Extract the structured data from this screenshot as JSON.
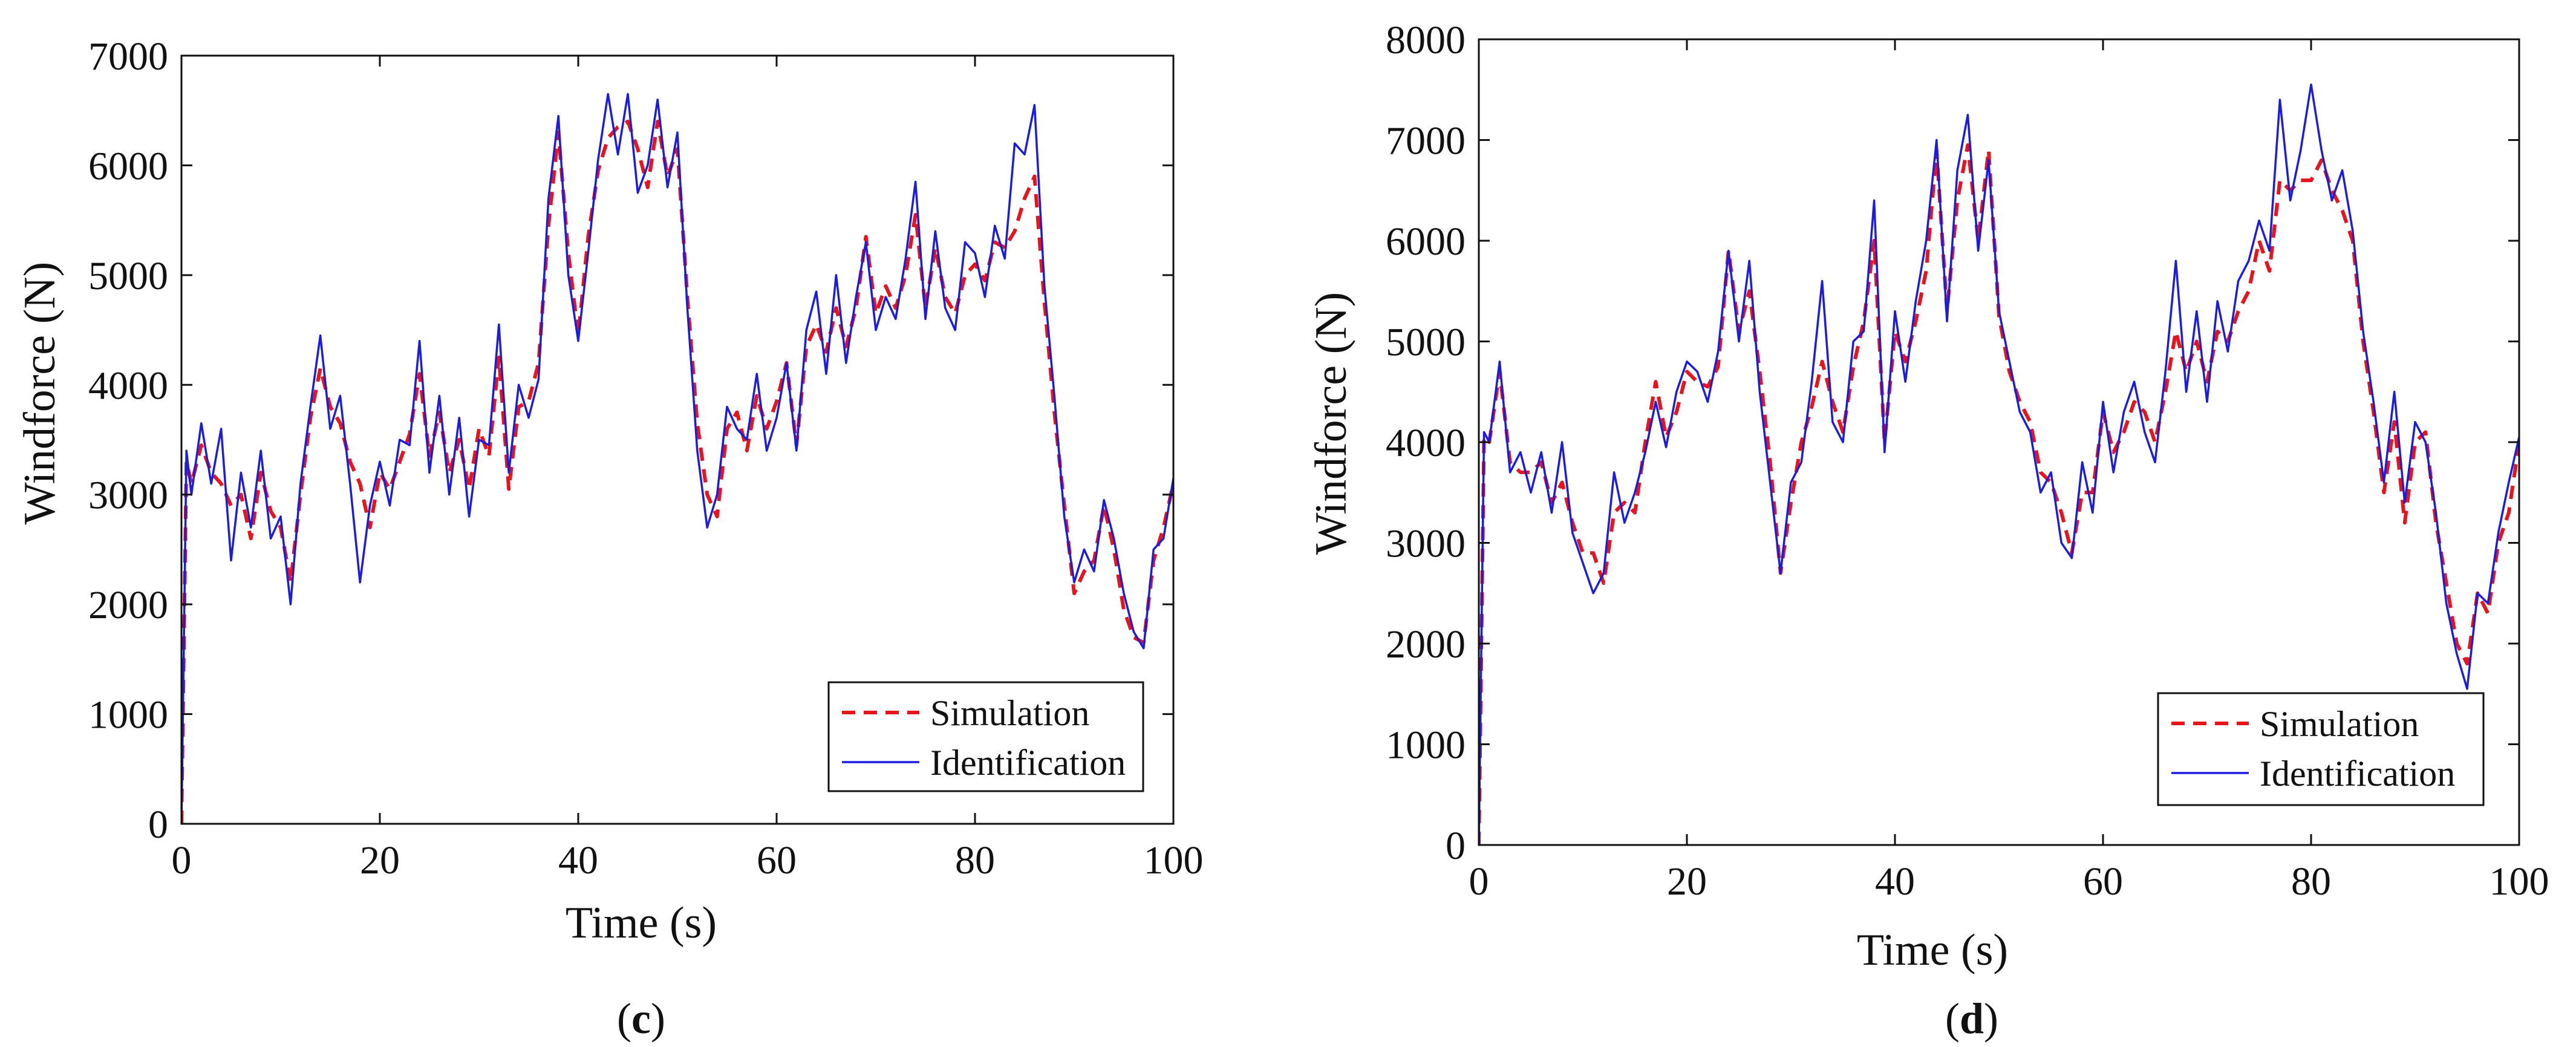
{
  "chart_data": [
    {
      "type": "line",
      "panel_label": "c",
      "title": "",
      "xlabel": "Time (s)",
      "ylabel": "Windforce (N)",
      "xlim": [
        0,
        100
      ],
      "ylim": [
        0,
        7000
      ],
      "xticks": [
        0,
        20,
        40,
        60,
        80,
        100
      ],
      "yticks": [
        0,
        1000,
        2000,
        3000,
        4000,
        5000,
        6000,
        7000
      ],
      "grid": false,
      "legend_position": "bottom-right",
      "series": [
        {
          "name": "Simulation",
          "style": "dashed",
          "color": "#e8141c",
          "x": [
            0,
            0.5,
            1,
            2,
            3,
            4,
            5,
            6,
            7,
            8,
            9,
            10,
            11,
            12,
            13,
            14,
            15,
            16,
            17,
            18,
            19,
            20,
            21,
            22,
            23,
            24,
            25,
            26,
            27,
            28,
            29,
            30,
            31,
            32,
            33,
            34,
            35,
            36,
            37,
            38,
            39,
            40,
            41,
            42,
            43,
            44,
            45,
            46,
            47,
            48,
            49,
            50,
            51,
            52,
            53,
            54,
            55,
            56,
            57,
            58,
            59,
            60,
            61,
            62,
            63,
            64,
            65,
            66,
            67,
            68,
            69,
            70,
            71,
            72,
            73,
            74,
            75,
            76,
            77,
            78,
            79,
            80,
            81,
            82,
            83,
            84,
            85,
            86,
            87,
            88,
            89,
            90,
            91,
            92,
            93,
            94,
            95,
            96,
            97,
            98,
            99,
            100
          ],
          "values": [
            0,
            3300,
            3100,
            3450,
            3200,
            3100,
            2900,
            3000,
            2600,
            3200,
            2850,
            2700,
            2200,
            3000,
            3700,
            4150,
            3800,
            3650,
            3300,
            3100,
            2700,
            3200,
            3050,
            3300,
            3550,
            4100,
            3350,
            3750,
            3200,
            3500,
            3050,
            3600,
            3350,
            4250,
            3050,
            3800,
            3850,
            4200,
            5450,
            6300,
            5200,
            4450,
            5350,
            5950,
            6250,
            6350,
            6400,
            6150,
            5800,
            6400,
            5900,
            6150,
            4800,
            3650,
            3000,
            2800,
            3600,
            3750,
            3400,
            3900,
            3600,
            3850,
            4200,
            3450,
            4350,
            4550,
            4300,
            4700,
            4350,
            4700,
            5350,
            4650,
            4900,
            4700,
            5000,
            5550,
            4700,
            5250,
            4800,
            4650,
            5000,
            5100,
            4950,
            5300,
            5250,
            5400,
            5700,
            5900,
            4750,
            3750,
            2900,
            2100,
            2300,
            2400,
            2900,
            2500,
            1950,
            1700,
            1650,
            2400,
            2700,
            3100
          ]
        },
        {
          "name": "Identification",
          "style": "solid",
          "color": "#1c1ce0",
          "x": [
            0,
            0.5,
            1,
            2,
            3,
            4,
            5,
            6,
            7,
            8,
            9,
            10,
            11,
            12,
            13,
            14,
            15,
            16,
            17,
            18,
            19,
            20,
            21,
            22,
            23,
            24,
            25,
            26,
            27,
            28,
            29,
            30,
            31,
            32,
            33,
            34,
            35,
            36,
            37,
            38,
            39,
            40,
            41,
            42,
            43,
            44,
            45,
            46,
            47,
            48,
            49,
            50,
            51,
            52,
            53,
            54,
            55,
            56,
            57,
            58,
            59,
            60,
            61,
            62,
            63,
            64,
            65,
            66,
            67,
            68,
            69,
            70,
            71,
            72,
            73,
            74,
            75,
            76,
            77,
            78,
            79,
            80,
            81,
            82,
            83,
            84,
            85,
            86,
            87,
            88,
            89,
            90,
            91,
            92,
            93,
            94,
            95,
            96,
            97,
            98,
            99,
            100
          ],
          "values": [
            0,
            3400,
            3000,
            3650,
            3100,
            3600,
            2400,
            3200,
            2700,
            3400,
            2600,
            2800,
            2000,
            3100,
            3800,
            4450,
            3600,
            3900,
            3100,
            2200,
            2900,
            3300,
            2900,
            3500,
            3450,
            4400,
            3200,
            3900,
            3000,
            3700,
            2800,
            3500,
            3450,
            4550,
            3200,
            4000,
            3700,
            4050,
            5700,
            6450,
            5000,
            4400,
            5200,
            6050,
            6650,
            6100,
            6650,
            5750,
            6000,
            6600,
            5800,
            6300,
            4700,
            3400,
            2700,
            3000,
            3800,
            3600,
            3500,
            4100,
            3400,
            3700,
            4200,
            3400,
            4500,
            4850,
            4100,
            5000,
            4200,
            4800,
            5300,
            4500,
            4800,
            4600,
            5150,
            5850,
            4600,
            5400,
            4700,
            4500,
            5300,
            5200,
            4800,
            5450,
            5150,
            6200,
            6100,
            6550,
            4900,
            3900,
            2800,
            2200,
            2500,
            2300,
            2950,
            2600,
            2100,
            1750,
            1600,
            2500,
            2600,
            3150
          ]
        }
      ]
    },
    {
      "type": "line",
      "panel_label": "d",
      "title": "",
      "xlabel": "Time (s)",
      "ylabel": "Windforce (N)",
      "xlim": [
        0,
        100
      ],
      "ylim": [
        0,
        8000
      ],
      "xticks": [
        0,
        20,
        40,
        60,
        80,
        100
      ],
      "yticks": [
        0,
        1000,
        2000,
        3000,
        4000,
        5000,
        6000,
        7000,
        8000
      ],
      "grid": false,
      "legend_position": "bottom-right",
      "series": [
        {
          "name": "Simulation",
          "style": "dashed",
          "color": "#e8141c",
          "x": [
            0,
            0.5,
            1,
            2,
            3,
            4,
            5,
            6,
            7,
            8,
            9,
            10,
            11,
            12,
            13,
            14,
            15,
            16,
            17,
            18,
            19,
            20,
            21,
            22,
            23,
            24,
            25,
            26,
            27,
            28,
            29,
            30,
            31,
            32,
            33,
            34,
            35,
            36,
            37,
            38,
            39,
            40,
            41,
            42,
            43,
            44,
            45,
            46,
            47,
            48,
            49,
            50,
            51,
            52,
            53,
            54,
            55,
            56,
            57,
            58,
            59,
            60,
            61,
            62,
            63,
            64,
            65,
            66,
            67,
            68,
            69,
            70,
            71,
            72,
            73,
            74,
            75,
            76,
            77,
            78,
            79,
            80,
            81,
            82,
            83,
            84,
            85,
            86,
            87,
            88,
            89,
            90,
            91,
            92,
            93,
            94,
            95,
            96,
            97,
            98,
            99,
            100
          ],
          "values": [
            0,
            4050,
            4000,
            4700,
            3800,
            3700,
            3700,
            3800,
            3400,
            3600,
            3200,
            2900,
            2900,
            2600,
            3300,
            3400,
            3300,
            4000,
            4600,
            4050,
            4300,
            4700,
            4600,
            4550,
            4750,
            5900,
            5100,
            5500,
            4700,
            3800,
            2700,
            3400,
            4000,
            4350,
            4800,
            4400,
            4100,
            4750,
            5200,
            6000,
            4000,
            5100,
            4800,
            5200,
            5700,
            6900,
            5300,
            6400,
            6950,
            6000,
            6900,
            5250,
            4700,
            4400,
            4200,
            3700,
            3600,
            3300,
            2900,
            3500,
            3500,
            4300,
            3900,
            4100,
            4400,
            4300,
            4000,
            4500,
            5100,
            4700,
            5000,
            4600,
            5100,
            5000,
            5300,
            5500,
            6000,
            5700,
            6600,
            6500,
            6600,
            6600,
            6800,
            6500,
            6300,
            6000,
            5000,
            4300,
            3500,
            4200,
            3200,
            4000,
            4100,
            3200,
            2600,
            2000,
            1800,
            2500,
            2300,
            3000,
            3300,
            4000
          ]
        },
        {
          "name": "Identification",
          "style": "solid",
          "color": "#1c1ce0",
          "x": [
            0,
            0.5,
            1,
            2,
            3,
            4,
            5,
            6,
            7,
            8,
            9,
            10,
            11,
            12,
            13,
            14,
            15,
            16,
            17,
            18,
            19,
            20,
            21,
            22,
            23,
            24,
            25,
            26,
            27,
            28,
            29,
            30,
            31,
            32,
            33,
            34,
            35,
            36,
            37,
            38,
            39,
            40,
            41,
            42,
            43,
            44,
            45,
            46,
            47,
            48,
            49,
            50,
            51,
            52,
            53,
            54,
            55,
            56,
            57,
            58,
            59,
            60,
            61,
            62,
            63,
            64,
            65,
            66,
            67,
            68,
            69,
            70,
            71,
            72,
            73,
            74,
            75,
            76,
            77,
            78,
            79,
            80,
            81,
            82,
            83,
            84,
            85,
            86,
            87,
            88,
            89,
            90,
            91,
            92,
            93,
            94,
            95,
            96,
            97,
            98,
            99,
            100
          ],
          "values": [
            0,
            4100,
            4000,
            4800,
            3700,
            3900,
            3500,
            3900,
            3300,
            4000,
            3100,
            2800,
            2500,
            2700,
            3700,
            3200,
            3500,
            3900,
            4400,
            3950,
            4500,
            4800,
            4700,
            4400,
            4900,
            5900,
            5000,
            5800,
            4500,
            3600,
            2700,
            3600,
            3800,
            4600,
            5600,
            4200,
            4000,
            5000,
            5100,
            6400,
            3900,
            5300,
            4600,
            5400,
            6000,
            7000,
            5200,
            6700,
            7250,
            5900,
            6800,
            5300,
            4800,
            4300,
            4100,
            3500,
            3700,
            3000,
            2850,
            3800,
            3300,
            4400,
            3700,
            4300,
            4600,
            4100,
            3800,
            4700,
            5800,
            4500,
            5300,
            4400,
            5400,
            4900,
            5600,
            5800,
            6200,
            5900,
            7400,
            6400,
            6900,
            7550,
            6900,
            6400,
            6700,
            6100,
            5100,
            4400,
            3600,
            4500,
            3400,
            4200,
            4000,
            3300,
            2400,
            1900,
            1550,
            2500,
            2400,
            3100,
            3600,
            4050
          ]
        }
      ]
    }
  ]
}
